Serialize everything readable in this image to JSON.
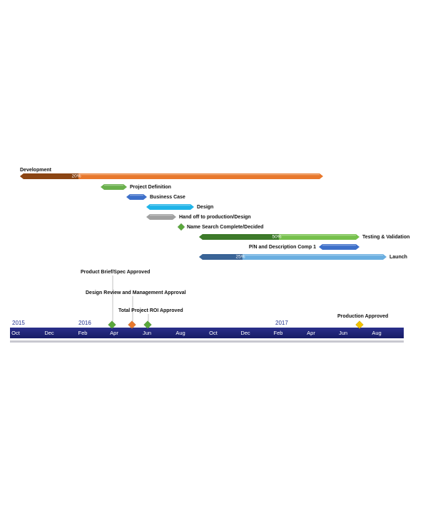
{
  "tasks": [
    {
      "label": "Development",
      "progress": "20%"
    },
    {
      "label": "Project Definition"
    },
    {
      "label": "Business Case"
    },
    {
      "label": "Design"
    },
    {
      "label": "Hand off to production/Design"
    },
    {
      "label": "Name Search Complete/Decided"
    },
    {
      "label": "Testing & Validation",
      "progress": "50%"
    },
    {
      "label": "P/N and Description Comp 1"
    },
    {
      "label": "Launch",
      "progress": "25%"
    }
  ],
  "milestones": [
    {
      "label": "Product Brief/Spec Approved"
    },
    {
      "label": "Design Review and Management Approval"
    },
    {
      "label": "Total Project ROI Approved"
    },
    {
      "label": "Production Approved"
    }
  ],
  "timeline": {
    "years": [
      "2015",
      "2016",
      "2017"
    ],
    "months": [
      "Oct",
      "Dec",
      "Feb",
      "Apr",
      "Jun",
      "Aug",
      "Oct",
      "Dec",
      "Feb",
      "Apr",
      "Jun",
      "Aug"
    ]
  }
}
